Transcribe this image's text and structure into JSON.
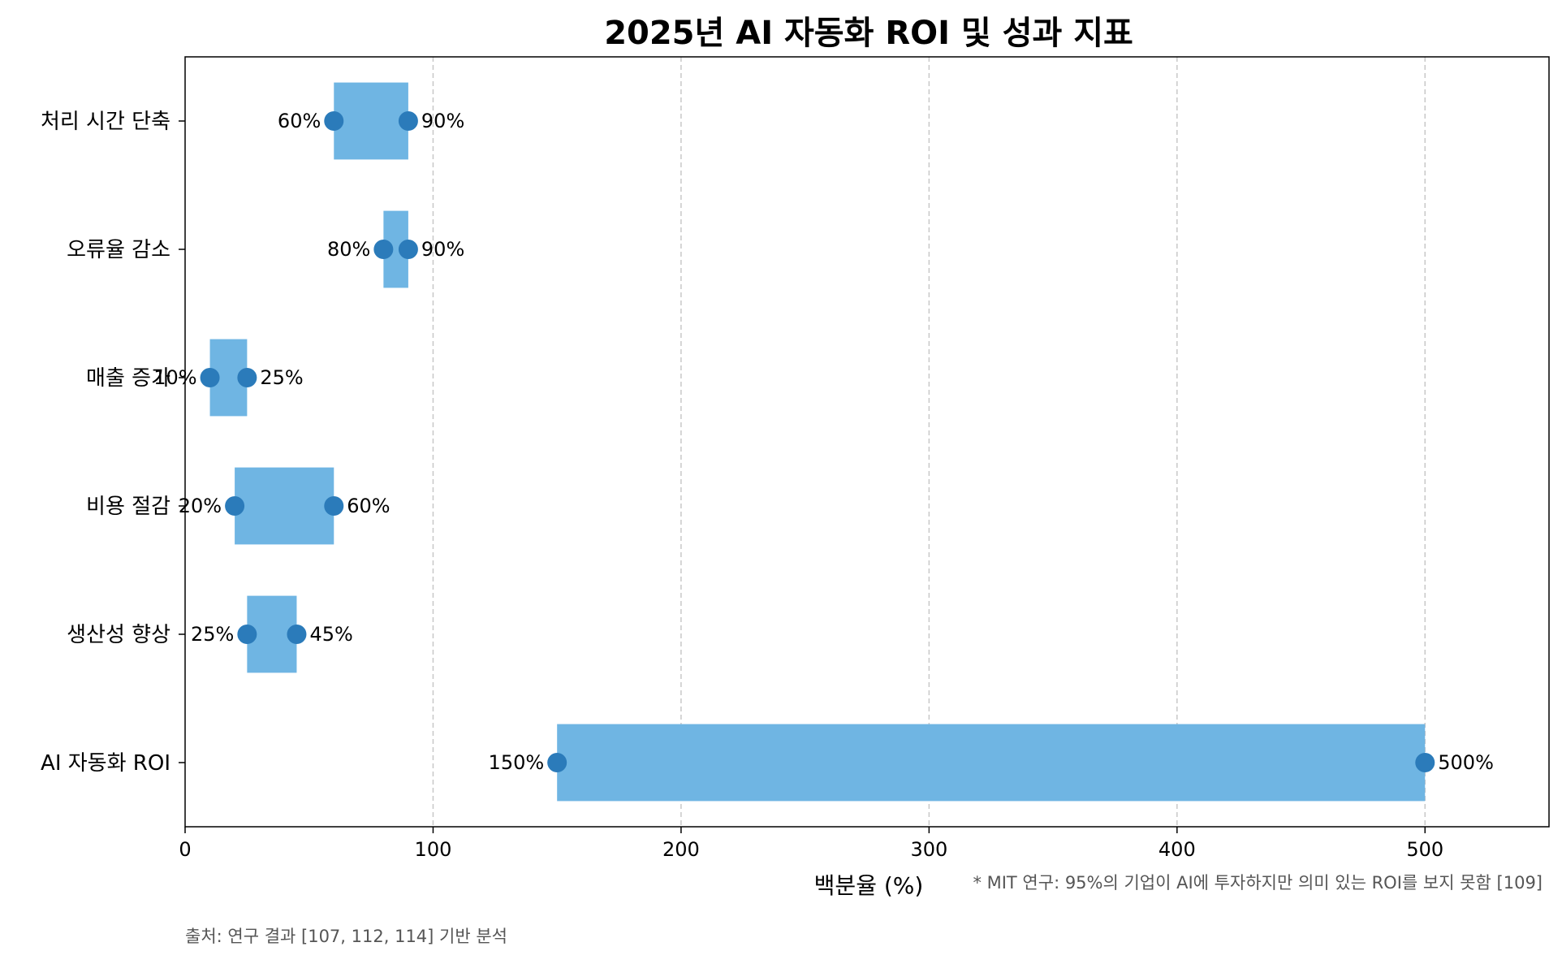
{
  "chart_data": {
    "type": "bar",
    "subtype": "horizontal-range",
    "title": "2025년 AI 자동화 ROI 및 성과 지표",
    "xlabel": "백분율 (%)",
    "ylabel": "",
    "xlim": [
      0,
      550
    ],
    "x_ticks": [
      "0",
      "100",
      "200",
      "300",
      "400",
      "500"
    ],
    "grid": "x-axis dashed",
    "categories": [
      "처리 시간 단축",
      "오류율 감소",
      "매출 증가",
      "비용 절감",
      "생산성 향상",
      "AI 자동화 ROI"
    ],
    "ranges": [
      {
        "category": "처리 시간 단축",
        "low": 60,
        "high": 90,
        "low_label": "60%",
        "high_label": "90%"
      },
      {
        "category": "오류율 감소",
        "low": 80,
        "high": 90,
        "low_label": "80%",
        "high_label": "90%"
      },
      {
        "category": "매출 증가",
        "low": 10,
        "high": 25,
        "low_label": "10%",
        "high_label": "25%"
      },
      {
        "category": "비용 절감",
        "low": 20,
        "high": 60,
        "low_label": "20%",
        "high_label": "60%"
      },
      {
        "category": "생산성 향상",
        "low": 25,
        "high": 45,
        "low_label": "25%",
        "high_label": "45%"
      },
      {
        "category": "AI 자동화 ROI",
        "low": 150,
        "high": 500,
        "low_label": "150%",
        "high_label": "500%"
      }
    ],
    "colors": {
      "bar": "#6fb5e3",
      "marker": "#2b7bba",
      "grid": "#c8c8c8",
      "note": "#555555"
    },
    "annotations": {
      "note": "* MIT 연구: 95%의 기업이 AI에 투자하지만 의미 있는 ROI를 보지 못함 [109]",
      "source": "출처: 연구 결과 [107, 112, 114] 기반 분석"
    }
  }
}
